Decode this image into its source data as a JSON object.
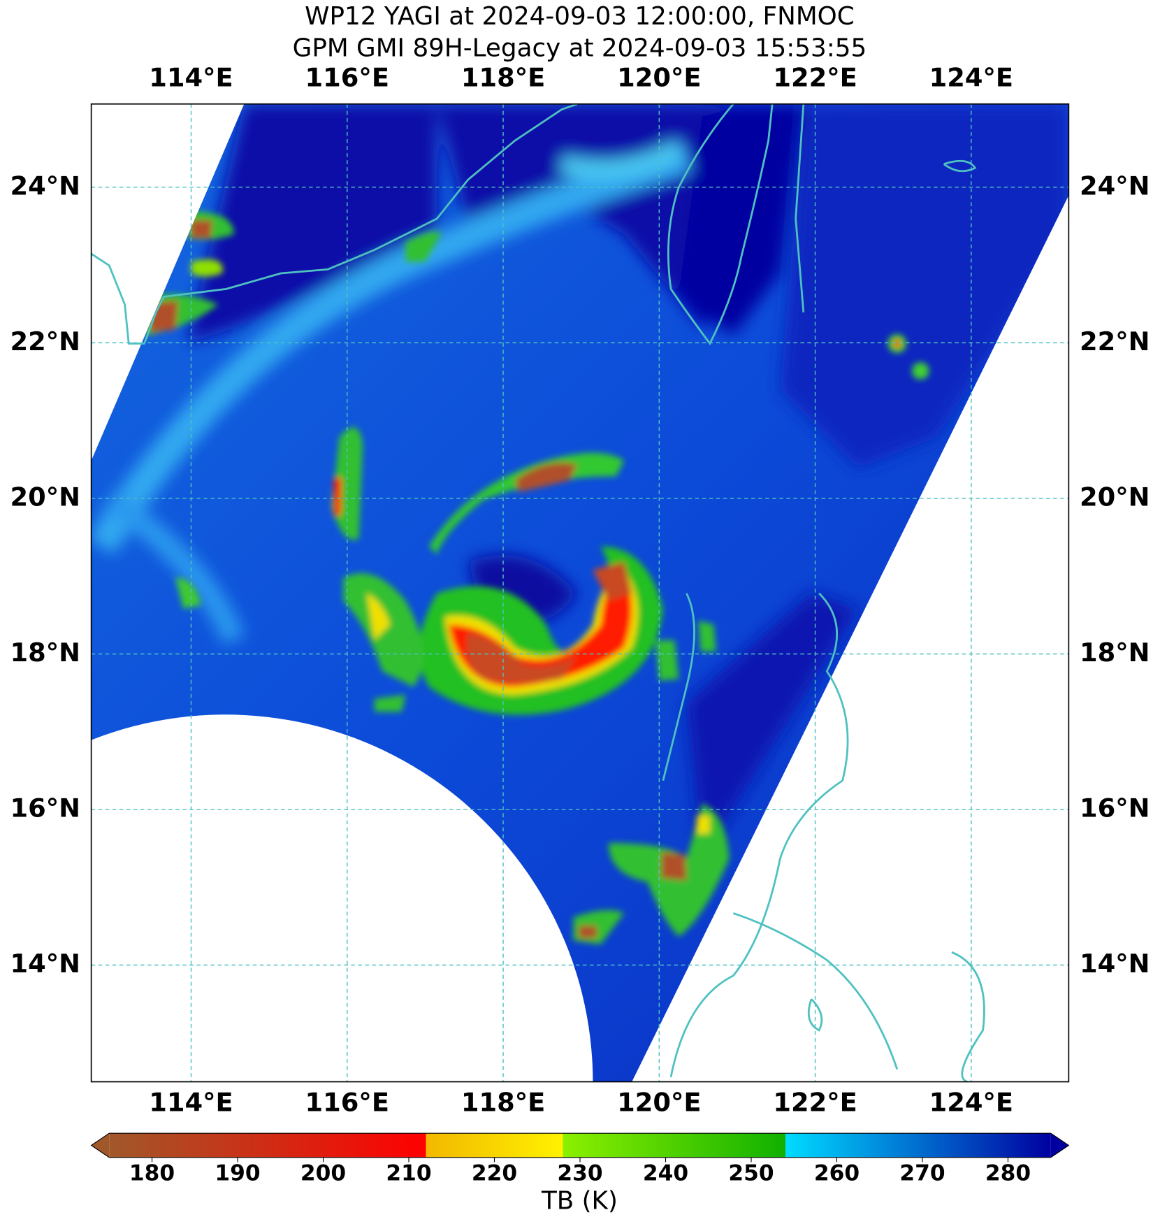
{
  "chart_data": {
    "type": "map",
    "title": "WP12 YAGI at 2024-09-03 12:00:00, FNMOC",
    "subtitle": "GPM GMI 89H-Legacy at 2024-09-03 15:53:55",
    "xlim": [
      112.72,
      125.25
    ],
    "ylim": [
      12.5,
      25.07
    ],
    "xticks": [
      {
        "value": 114,
        "label": "114°E"
      },
      {
        "value": 116,
        "label": "116°E"
      },
      {
        "value": 118,
        "label": "118°E"
      },
      {
        "value": 120,
        "label": "120°E"
      },
      {
        "value": 122,
        "label": "122°E"
      },
      {
        "value": 124,
        "label": "124°E"
      }
    ],
    "yticks": [
      {
        "value": 14,
        "label": "14°N"
      },
      {
        "value": 16,
        "label": "16°N"
      },
      {
        "value": 18,
        "label": "18°N"
      },
      {
        "value": 20,
        "label": "20°N"
      },
      {
        "value": 22,
        "label": "22°N"
      },
      {
        "value": 24,
        "label": "24°N"
      }
    ],
    "grid": true,
    "grid_color": "#4fc1c1",
    "colorbar": {
      "label": "TB (K)",
      "lim": [
        175,
        285
      ],
      "ticks": [
        180,
        190,
        200,
        210,
        220,
        230,
        240,
        250,
        260,
        270,
        280
      ],
      "bands": [
        {
          "from": 175,
          "to": 212,
          "colors": [
            "#a0582a",
            "#ff0000"
          ]
        },
        {
          "from": 212,
          "to": 228,
          "colors": [
            "#f2b800",
            "#fff200"
          ]
        },
        {
          "from": 228,
          "to": 254,
          "colors": [
            "#8cf000",
            "#10b000"
          ]
        },
        {
          "from": 254,
          "to": 285,
          "colors": [
            "#00dcff",
            "#0000a0"
          ]
        }
      ]
    }
  }
}
